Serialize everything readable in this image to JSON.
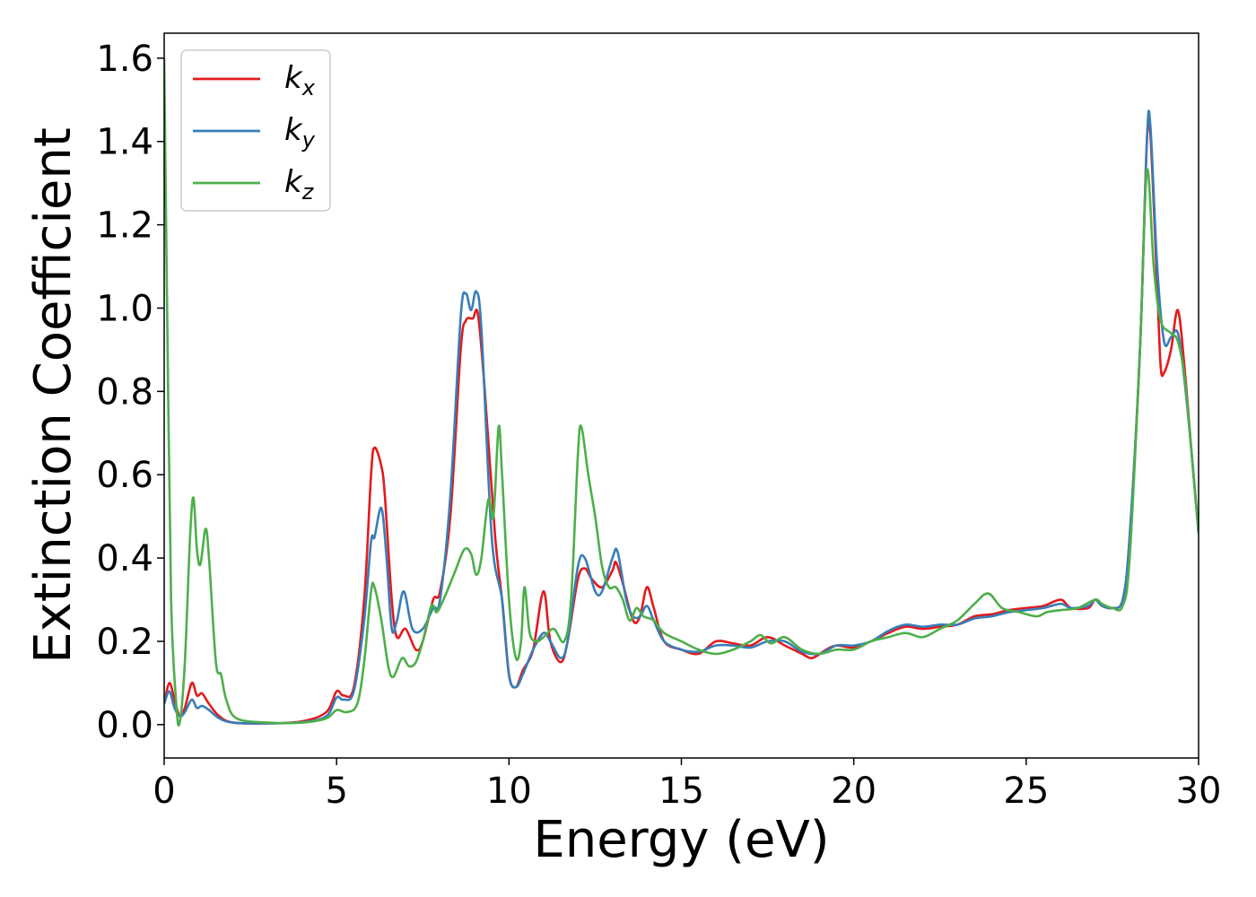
{
  "chart_data": {
    "type": "line",
    "xlabel": "Energy (eV)",
    "ylabel": "Extinction Coefficient",
    "xlim": [
      0,
      30
    ],
    "ylim": [
      -0.08,
      1.66
    ],
    "xticks": [
      0,
      5,
      10,
      15,
      20,
      25,
      30
    ],
    "xtick_labels": [
      "0",
      "5",
      "10",
      "15",
      "20",
      "25",
      "30"
    ],
    "yticks": [
      0.0,
      0.2,
      0.4,
      0.6,
      0.8,
      1.0,
      1.2,
      1.4,
      1.6
    ],
    "ytick_labels": [
      "0.0",
      "0.2",
      "0.4",
      "0.6",
      "0.8",
      "1.0",
      "1.2",
      "1.4",
      "1.6"
    ],
    "grid": false,
    "legend_position": "top-left",
    "series": [
      {
        "name": "k",
        "subscript": "x",
        "color": "#e41a1c",
        "points": [
          [
            0,
            0.05
          ],
          [
            0.15,
            0.1
          ],
          [
            0.3,
            0.06
          ],
          [
            0.45,
            0.02
          ],
          [
            0.6,
            0.04
          ],
          [
            0.8,
            0.1
          ],
          [
            0.95,
            0.07
          ],
          [
            1.1,
            0.075
          ],
          [
            1.3,
            0.05
          ],
          [
            1.6,
            0.02
          ],
          [
            2,
            0.005
          ],
          [
            3,
            0.003
          ],
          [
            4,
            0.008
          ],
          [
            4.7,
            0.03
          ],
          [
            5.0,
            0.08
          ],
          [
            5.2,
            0.07
          ],
          [
            5.5,
            0.09
          ],
          [
            5.8,
            0.3
          ],
          [
            6.0,
            0.6
          ],
          [
            6.1,
            0.665
          ],
          [
            6.3,
            0.62
          ],
          [
            6.4,
            0.55
          ],
          [
            6.6,
            0.3
          ],
          [
            6.75,
            0.21
          ],
          [
            7.0,
            0.23
          ],
          [
            7.3,
            0.18
          ],
          [
            7.5,
            0.2
          ],
          [
            7.8,
            0.3
          ],
          [
            8.0,
            0.32
          ],
          [
            8.3,
            0.5
          ],
          [
            8.6,
            0.9
          ],
          [
            8.75,
            0.97
          ],
          [
            8.95,
            0.975
          ],
          [
            9.1,
            0.985
          ],
          [
            9.3,
            0.8
          ],
          [
            9.6,
            0.45
          ],
          [
            9.8,
            0.3
          ],
          [
            10.0,
            0.12
          ],
          [
            10.2,
            0.09
          ],
          [
            10.4,
            0.13
          ],
          [
            10.7,
            0.18
          ],
          [
            11.0,
            0.32
          ],
          [
            11.2,
            0.2
          ],
          [
            11.5,
            0.15
          ],
          [
            11.7,
            0.2
          ],
          [
            12.0,
            0.35
          ],
          [
            12.2,
            0.375
          ],
          [
            12.4,
            0.35
          ],
          [
            12.7,
            0.33
          ],
          [
            13.0,
            0.37
          ],
          [
            13.1,
            0.39
          ],
          [
            13.3,
            0.34
          ],
          [
            13.6,
            0.25
          ],
          [
            13.8,
            0.26
          ],
          [
            14.0,
            0.33
          ],
          [
            14.2,
            0.28
          ],
          [
            14.5,
            0.2
          ],
          [
            15.0,
            0.18
          ],
          [
            15.5,
            0.17
          ],
          [
            16.0,
            0.2
          ],
          [
            16.5,
            0.195
          ],
          [
            17.0,
            0.19
          ],
          [
            17.5,
            0.21
          ],
          [
            18.0,
            0.19
          ],
          [
            18.5,
            0.17
          ],
          [
            18.8,
            0.16
          ],
          [
            19.2,
            0.18
          ],
          [
            19.5,
            0.19
          ],
          [
            20.0,
            0.185
          ],
          [
            20.5,
            0.2
          ],
          [
            21.0,
            0.22
          ],
          [
            21.5,
            0.235
          ],
          [
            22.0,
            0.23
          ],
          [
            22.5,
            0.235
          ],
          [
            23.0,
            0.24
          ],
          [
            23.5,
            0.26
          ],
          [
            24.0,
            0.265
          ],
          [
            24.5,
            0.275
          ],
          [
            25.0,
            0.28
          ],
          [
            25.5,
            0.285
          ],
          [
            26.0,
            0.3
          ],
          [
            26.3,
            0.28
          ],
          [
            26.8,
            0.28
          ],
          [
            27.0,
            0.3
          ],
          [
            27.2,
            0.285
          ],
          [
            27.5,
            0.28
          ],
          [
            27.8,
            0.3
          ],
          [
            28.0,
            0.45
          ],
          [
            28.3,
            0.9
          ],
          [
            28.5,
            1.4
          ],
          [
            28.6,
            1.42
          ],
          [
            28.8,
            1.05
          ],
          [
            28.9,
            0.86
          ],
          [
            29.0,
            0.845
          ],
          [
            29.2,
            0.9
          ],
          [
            29.4,
            0.995
          ],
          [
            29.6,
            0.85
          ],
          [
            29.8,
            0.65
          ],
          [
            30.0,
            0.46
          ]
        ]
      },
      {
        "name": "k",
        "subscript": "y",
        "color": "#377eb8",
        "points": [
          [
            0,
            0.05
          ],
          [
            0.15,
            0.08
          ],
          [
            0.3,
            0.04
          ],
          [
            0.45,
            0.02
          ],
          [
            0.6,
            0.03
          ],
          [
            0.8,
            0.06
          ],
          [
            0.95,
            0.04
          ],
          [
            1.1,
            0.045
          ],
          [
            1.3,
            0.035
          ],
          [
            1.6,
            0.015
          ],
          [
            2,
            0.005
          ],
          [
            3,
            0.003
          ],
          [
            4,
            0.006
          ],
          [
            4.7,
            0.02
          ],
          [
            5.0,
            0.065
          ],
          [
            5.2,
            0.06
          ],
          [
            5.5,
            0.08
          ],
          [
            5.8,
            0.25
          ],
          [
            6.0,
            0.44
          ],
          [
            6.1,
            0.45
          ],
          [
            6.3,
            0.52
          ],
          [
            6.45,
            0.4
          ],
          [
            6.6,
            0.23
          ],
          [
            6.75,
            0.25
          ],
          [
            6.95,
            0.32
          ],
          [
            7.2,
            0.23
          ],
          [
            7.5,
            0.23
          ],
          [
            7.8,
            0.28
          ],
          [
            8.0,
            0.3
          ],
          [
            8.3,
            0.55
          ],
          [
            8.6,
            0.98
          ],
          [
            8.75,
            1.035
          ],
          [
            8.9,
            0.995
          ],
          [
            9.05,
            1.04
          ],
          [
            9.2,
            0.95
          ],
          [
            9.5,
            0.45
          ],
          [
            9.8,
            0.3
          ],
          [
            10.0,
            0.12
          ],
          [
            10.2,
            0.09
          ],
          [
            10.4,
            0.12
          ],
          [
            10.7,
            0.18
          ],
          [
            11.0,
            0.22
          ],
          [
            11.2,
            0.2
          ],
          [
            11.5,
            0.16
          ],
          [
            11.7,
            0.2
          ],
          [
            12.0,
            0.38
          ],
          [
            12.2,
            0.4
          ],
          [
            12.5,
            0.32
          ],
          [
            12.7,
            0.32
          ],
          [
            13.0,
            0.4
          ],
          [
            13.15,
            0.415
          ],
          [
            13.4,
            0.3
          ],
          [
            13.6,
            0.26
          ],
          [
            13.8,
            0.26
          ],
          [
            14.0,
            0.285
          ],
          [
            14.2,
            0.25
          ],
          [
            14.5,
            0.2
          ],
          [
            15.0,
            0.18
          ],
          [
            15.5,
            0.175
          ],
          [
            16.0,
            0.19
          ],
          [
            16.5,
            0.19
          ],
          [
            17.0,
            0.185
          ],
          [
            17.5,
            0.2
          ],
          [
            18.0,
            0.2
          ],
          [
            18.5,
            0.175
          ],
          [
            19.0,
            0.17
          ],
          [
            19.5,
            0.19
          ],
          [
            20.0,
            0.19
          ],
          [
            20.5,
            0.2
          ],
          [
            21.0,
            0.225
          ],
          [
            21.5,
            0.24
          ],
          [
            22.0,
            0.235
          ],
          [
            22.5,
            0.24
          ],
          [
            23.0,
            0.24
          ],
          [
            23.5,
            0.255
          ],
          [
            24.0,
            0.26
          ],
          [
            24.5,
            0.27
          ],
          [
            25.0,
            0.275
          ],
          [
            25.5,
            0.28
          ],
          [
            26.0,
            0.29
          ],
          [
            26.3,
            0.28
          ],
          [
            26.8,
            0.285
          ],
          [
            27.0,
            0.3
          ],
          [
            27.2,
            0.285
          ],
          [
            27.5,
            0.28
          ],
          [
            27.8,
            0.3
          ],
          [
            28.0,
            0.45
          ],
          [
            28.3,
            0.9
          ],
          [
            28.5,
            1.4
          ],
          [
            28.6,
            1.44
          ],
          [
            28.8,
            1.1
          ],
          [
            29.0,
            0.92
          ],
          [
            29.2,
            0.93
          ],
          [
            29.4,
            0.94
          ],
          [
            29.6,
            0.82
          ],
          [
            29.8,
            0.65
          ],
          [
            30.0,
            0.46
          ]
        ]
      },
      {
        "name": "k",
        "subscript": "z",
        "color": "#4daf4a",
        "points": [
          [
            0,
            1.6
          ],
          [
            0.1,
            0.9
          ],
          [
            0.2,
            0.3
          ],
          [
            0.35,
            0.05
          ],
          [
            0.45,
            0.005
          ],
          [
            0.6,
            0.15
          ],
          [
            0.75,
            0.45
          ],
          [
            0.85,
            0.545
          ],
          [
            0.95,
            0.42
          ],
          [
            1.05,
            0.385
          ],
          [
            1.2,
            0.47
          ],
          [
            1.3,
            0.4
          ],
          [
            1.5,
            0.15
          ],
          [
            1.65,
            0.12
          ],
          [
            1.8,
            0.06
          ],
          [
            2.1,
            0.015
          ],
          [
            3,
            0.005
          ],
          [
            4,
            0.005
          ],
          [
            4.7,
            0.015
          ],
          [
            5.0,
            0.035
          ],
          [
            5.3,
            0.03
          ],
          [
            5.6,
            0.05
          ],
          [
            5.8,
            0.15
          ],
          [
            6.0,
            0.32
          ],
          [
            6.1,
            0.33
          ],
          [
            6.3,
            0.25
          ],
          [
            6.5,
            0.14
          ],
          [
            6.65,
            0.115
          ],
          [
            6.9,
            0.16
          ],
          [
            7.1,
            0.14
          ],
          [
            7.3,
            0.15
          ],
          [
            7.5,
            0.2
          ],
          [
            7.75,
            0.285
          ],
          [
            7.9,
            0.27
          ],
          [
            8.1,
            0.3
          ],
          [
            8.4,
            0.36
          ],
          [
            8.7,
            0.42
          ],
          [
            8.9,
            0.41
          ],
          [
            9.05,
            0.36
          ],
          [
            9.2,
            0.4
          ],
          [
            9.4,
            0.54
          ],
          [
            9.55,
            0.5
          ],
          [
            9.7,
            0.715
          ],
          [
            9.8,
            0.6
          ],
          [
            10.0,
            0.3
          ],
          [
            10.2,
            0.16
          ],
          [
            10.35,
            0.2
          ],
          [
            10.45,
            0.33
          ],
          [
            10.6,
            0.22
          ],
          [
            10.8,
            0.2
          ],
          [
            11.0,
            0.21
          ],
          [
            11.3,
            0.23
          ],
          [
            11.6,
            0.2
          ],
          [
            11.8,
            0.3
          ],
          [
            12.0,
            0.65
          ],
          [
            12.1,
            0.715
          ],
          [
            12.3,
            0.6
          ],
          [
            12.5,
            0.5
          ],
          [
            12.7,
            0.38
          ],
          [
            12.9,
            0.33
          ],
          [
            13.1,
            0.33
          ],
          [
            13.3,
            0.3
          ],
          [
            13.5,
            0.25
          ],
          [
            13.7,
            0.28
          ],
          [
            13.9,
            0.26
          ],
          [
            14.2,
            0.25
          ],
          [
            14.5,
            0.22
          ],
          [
            15.0,
            0.2
          ],
          [
            15.5,
            0.18
          ],
          [
            16.0,
            0.17
          ],
          [
            16.5,
            0.18
          ],
          [
            17.0,
            0.2
          ],
          [
            17.3,
            0.215
          ],
          [
            17.6,
            0.195
          ],
          [
            18.0,
            0.21
          ],
          [
            18.5,
            0.18
          ],
          [
            19.0,
            0.17
          ],
          [
            19.5,
            0.18
          ],
          [
            20.0,
            0.18
          ],
          [
            20.5,
            0.2
          ],
          [
            21.0,
            0.21
          ],
          [
            21.5,
            0.22
          ],
          [
            22.0,
            0.21
          ],
          [
            22.5,
            0.23
          ],
          [
            23.0,
            0.25
          ],
          [
            23.5,
            0.29
          ],
          [
            23.9,
            0.315
          ],
          [
            24.3,
            0.28
          ],
          [
            24.8,
            0.27
          ],
          [
            25.3,
            0.26
          ],
          [
            25.6,
            0.27
          ],
          [
            26.0,
            0.275
          ],
          [
            26.5,
            0.28
          ],
          [
            27.0,
            0.3
          ],
          [
            27.2,
            0.29
          ],
          [
            27.5,
            0.28
          ],
          [
            27.8,
            0.285
          ],
          [
            28.0,
            0.4
          ],
          [
            28.3,
            0.9
          ],
          [
            28.5,
            1.33
          ],
          [
            28.7,
            1.1
          ],
          [
            28.9,
            0.97
          ],
          [
            29.2,
            0.94
          ],
          [
            29.4,
            0.92
          ],
          [
            29.6,
            0.83
          ],
          [
            29.8,
            0.65
          ],
          [
            30.0,
            0.46
          ]
        ]
      }
    ]
  }
}
